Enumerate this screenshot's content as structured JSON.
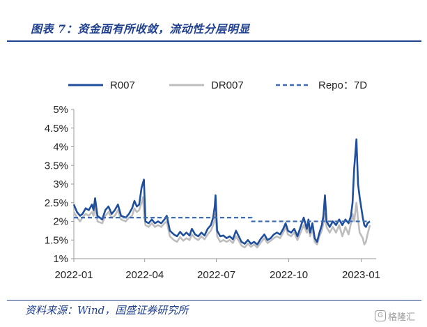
{
  "header": {
    "title": "图表 7：资金面有所收敛，流动性分层明显"
  },
  "footer": {
    "source": "资料来源：Wind，国盛证券研究所"
  },
  "watermark": {
    "text": "格隆汇"
  },
  "colors": {
    "accent": "#1f3f8f",
    "r007": "#1f4e9c",
    "dr007": "#bdbdbd",
    "repo": "#3c6db4"
  },
  "chart_data": {
    "type": "line",
    "title": "",
    "xlabel": "",
    "ylabel": "",
    "ylim": [
      1,
      5
    ],
    "yticks": [
      1,
      1.5,
      2,
      2.5,
      3,
      3.5,
      4,
      4.5,
      5
    ],
    "ytick_labels": [
      "1%",
      "1.5%",
      "2%",
      "2.5%",
      "3%",
      "3.5%",
      "4%",
      "4.5%",
      "5%"
    ],
    "xlim": [
      "2022-01-01",
      "2023-01-20"
    ],
    "xticks": [
      "2022-01-01",
      "2022-04-01",
      "2022-07-01",
      "2022-10-01",
      "2023-01-01"
    ],
    "xtick_labels": [
      "2022-01",
      "2022-04",
      "2022-07",
      "2022-10",
      "2023-01"
    ],
    "grid": false,
    "legend": "top",
    "series": [
      {
        "name": "R007",
        "style": "solid",
        "points": [
          [
            "2022-01-01",
            2.45
          ],
          [
            "2022-01-05",
            2.25
          ],
          [
            "2022-01-09",
            2.15
          ],
          [
            "2022-01-12",
            2.2
          ],
          [
            "2022-01-16",
            2.35
          ],
          [
            "2022-01-20",
            2.3
          ],
          [
            "2022-01-24",
            2.45
          ],
          [
            "2022-01-26",
            2.3
          ],
          [
            "2022-01-28",
            2.62
          ],
          [
            "2022-01-31",
            2.15
          ],
          [
            "2022-02-06",
            2.05
          ],
          [
            "2022-02-10",
            2.3
          ],
          [
            "2022-02-14",
            2.4
          ],
          [
            "2022-02-18",
            2.2
          ],
          [
            "2022-02-22",
            2.3
          ],
          [
            "2022-02-26",
            2.45
          ],
          [
            "2022-03-02",
            2.15
          ],
          [
            "2022-03-08",
            2.1
          ],
          [
            "2022-03-12",
            2.2
          ],
          [
            "2022-03-16",
            2.35
          ],
          [
            "2022-03-19",
            2.55
          ],
          [
            "2022-03-22",
            2.4
          ],
          [
            "2022-03-25",
            2.45
          ],
          [
            "2022-03-28",
            2.9
          ],
          [
            "2022-03-30",
            3.05
          ],
          [
            "2022-03-31",
            3.12
          ],
          [
            "2022-04-02",
            2.0
          ],
          [
            "2022-04-06",
            1.95
          ],
          [
            "2022-04-10",
            2.05
          ],
          [
            "2022-04-14",
            1.95
          ],
          [
            "2022-04-18",
            2.0
          ],
          [
            "2022-04-22",
            1.95
          ],
          [
            "2022-04-26",
            2.05
          ],
          [
            "2022-04-29",
            2.15
          ],
          [
            "2022-05-03",
            1.75
          ],
          [
            "2022-05-08",
            1.65
          ],
          [
            "2022-05-12",
            1.6
          ],
          [
            "2022-05-16",
            1.72
          ],
          [
            "2022-05-20",
            1.62
          ],
          [
            "2022-05-24",
            1.7
          ],
          [
            "2022-05-28",
            1.62
          ],
          [
            "2022-05-31",
            1.8
          ],
          [
            "2022-06-04",
            1.65
          ],
          [
            "2022-06-08",
            1.6
          ],
          [
            "2022-06-12",
            1.7
          ],
          [
            "2022-06-16",
            1.62
          ],
          [
            "2022-06-20",
            1.8
          ],
          [
            "2022-06-24",
            1.9
          ],
          [
            "2022-06-27",
            2.1
          ],
          [
            "2022-06-29",
            2.4
          ],
          [
            "2022-06-30",
            2.7
          ],
          [
            "2022-07-02",
            1.75
          ],
          [
            "2022-07-06",
            1.6
          ],
          [
            "2022-07-10",
            1.62
          ],
          [
            "2022-07-14",
            1.55
          ],
          [
            "2022-07-18",
            1.6
          ],
          [
            "2022-07-22",
            1.52
          ],
          [
            "2022-07-26",
            1.75
          ],
          [
            "2022-07-29",
            1.62
          ],
          [
            "2022-08-02",
            1.45
          ],
          [
            "2022-08-06",
            1.4
          ],
          [
            "2022-08-10",
            1.5
          ],
          [
            "2022-08-14",
            1.4
          ],
          [
            "2022-08-18",
            1.45
          ],
          [
            "2022-08-22",
            1.38
          ],
          [
            "2022-08-26",
            1.52
          ],
          [
            "2022-08-31",
            1.65
          ],
          [
            "2022-09-04",
            1.5
          ],
          [
            "2022-09-08",
            1.55
          ],
          [
            "2022-09-12",
            1.65
          ],
          [
            "2022-09-16",
            1.7
          ],
          [
            "2022-09-20",
            1.65
          ],
          [
            "2022-09-24",
            1.8
          ],
          [
            "2022-09-27",
            1.95
          ],
          [
            "2022-09-30",
            1.75
          ],
          [
            "2022-10-04",
            1.7
          ],
          [
            "2022-10-08",
            1.8
          ],
          [
            "2022-10-12",
            1.6
          ],
          [
            "2022-10-16",
            1.85
          ],
          [
            "2022-10-20",
            2.1
          ],
          [
            "2022-10-24",
            1.8
          ],
          [
            "2022-10-26",
            2.05
          ],
          [
            "2022-10-28",
            1.7
          ],
          [
            "2022-10-31",
            1.95
          ],
          [
            "2022-11-03",
            1.55
          ],
          [
            "2022-11-06",
            1.45
          ],
          [
            "2022-11-09",
            1.7
          ],
          [
            "2022-11-12",
            1.9
          ],
          [
            "2022-11-14",
            2.15
          ],
          [
            "2022-11-16",
            2.7
          ],
          [
            "2022-11-18",
            2.0
          ],
          [
            "2022-11-22",
            1.85
          ],
          [
            "2022-11-26",
            2.0
          ],
          [
            "2022-11-30",
            1.9
          ],
          [
            "2022-12-04",
            2.05
          ],
          [
            "2022-12-08",
            1.9
          ],
          [
            "2022-12-12",
            2.05
          ],
          [
            "2022-12-16",
            1.95
          ],
          [
            "2022-12-19",
            2.15
          ],
          [
            "2022-12-21",
            2.5
          ],
          [
            "2022-12-23",
            3.4
          ],
          [
            "2022-12-26",
            4.2
          ],
          [
            "2022-12-28",
            3.0
          ],
          [
            "2022-12-30",
            2.65
          ],
          [
            "2023-01-03",
            2.1
          ],
          [
            "2023-01-05",
            1.9
          ],
          [
            "2023-01-07",
            1.85
          ],
          [
            "2023-01-09",
            1.95
          ],
          [
            "2023-01-12",
            2.0
          ]
        ]
      },
      {
        "name": "DR007",
        "style": "solid",
        "points": [
          [
            "2022-01-01",
            2.25
          ],
          [
            "2022-01-05",
            2.1
          ],
          [
            "2022-01-09",
            2.0
          ],
          [
            "2022-01-12",
            2.1
          ],
          [
            "2022-01-16",
            2.2
          ],
          [
            "2022-01-20",
            2.15
          ],
          [
            "2022-01-24",
            2.25
          ],
          [
            "2022-01-26",
            2.15
          ],
          [
            "2022-01-28",
            2.4
          ],
          [
            "2022-01-31",
            2.0
          ],
          [
            "2022-02-06",
            1.95
          ],
          [
            "2022-02-10",
            2.15
          ],
          [
            "2022-02-14",
            2.25
          ],
          [
            "2022-02-18",
            2.1
          ],
          [
            "2022-02-22",
            2.15
          ],
          [
            "2022-02-26",
            2.3
          ],
          [
            "2022-03-02",
            2.05
          ],
          [
            "2022-03-08",
            2.0
          ],
          [
            "2022-03-12",
            2.1
          ],
          [
            "2022-03-16",
            2.15
          ],
          [
            "2022-03-19",
            2.35
          ],
          [
            "2022-03-22",
            2.25
          ],
          [
            "2022-03-25",
            2.3
          ],
          [
            "2022-03-28",
            2.5
          ],
          [
            "2022-03-30",
            2.65
          ],
          [
            "2022-03-31",
            2.2
          ],
          [
            "2022-04-02",
            1.9
          ],
          [
            "2022-04-06",
            1.85
          ],
          [
            "2022-04-10",
            1.95
          ],
          [
            "2022-04-14",
            1.85
          ],
          [
            "2022-04-18",
            1.9
          ],
          [
            "2022-04-22",
            1.85
          ],
          [
            "2022-04-26",
            1.95
          ],
          [
            "2022-04-29",
            2.0
          ],
          [
            "2022-05-03",
            1.6
          ],
          [
            "2022-05-08",
            1.5
          ],
          [
            "2022-05-12",
            1.45
          ],
          [
            "2022-05-16",
            1.58
          ],
          [
            "2022-05-20",
            1.48
          ],
          [
            "2022-05-24",
            1.55
          ],
          [
            "2022-05-28",
            1.5
          ],
          [
            "2022-05-31",
            1.65
          ],
          [
            "2022-06-04",
            1.55
          ],
          [
            "2022-06-08",
            1.5
          ],
          [
            "2022-06-12",
            1.6
          ],
          [
            "2022-06-16",
            1.52
          ],
          [
            "2022-06-20",
            1.65
          ],
          [
            "2022-06-24",
            1.75
          ],
          [
            "2022-06-27",
            1.9
          ],
          [
            "2022-06-29",
            2.05
          ],
          [
            "2022-06-30",
            2.2
          ],
          [
            "2022-07-02",
            1.6
          ],
          [
            "2022-07-06",
            1.45
          ],
          [
            "2022-07-10",
            1.5
          ],
          [
            "2022-07-14",
            1.45
          ],
          [
            "2022-07-18",
            1.5
          ],
          [
            "2022-07-22",
            1.42
          ],
          [
            "2022-07-26",
            1.6
          ],
          [
            "2022-07-29",
            1.5
          ],
          [
            "2022-08-02",
            1.35
          ],
          [
            "2022-08-06",
            1.3
          ],
          [
            "2022-08-10",
            1.4
          ],
          [
            "2022-08-14",
            1.32
          ],
          [
            "2022-08-18",
            1.38
          ],
          [
            "2022-08-22",
            1.3
          ],
          [
            "2022-08-26",
            1.42
          ],
          [
            "2022-08-31",
            1.55
          ],
          [
            "2022-09-04",
            1.42
          ],
          [
            "2022-09-08",
            1.48
          ],
          [
            "2022-09-12",
            1.55
          ],
          [
            "2022-09-16",
            1.6
          ],
          [
            "2022-09-20",
            1.55
          ],
          [
            "2022-09-24",
            1.7
          ],
          [
            "2022-09-27",
            1.85
          ],
          [
            "2022-09-30",
            1.65
          ],
          [
            "2022-10-04",
            1.6
          ],
          [
            "2022-10-08",
            1.7
          ],
          [
            "2022-10-12",
            1.5
          ],
          [
            "2022-10-16",
            1.7
          ],
          [
            "2022-10-20",
            1.9
          ],
          [
            "2022-10-24",
            1.7
          ],
          [
            "2022-10-26",
            1.9
          ],
          [
            "2022-10-28",
            1.6
          ],
          [
            "2022-10-31",
            1.8
          ],
          [
            "2022-11-03",
            1.45
          ],
          [
            "2022-11-06",
            1.38
          ],
          [
            "2022-11-09",
            1.6
          ],
          [
            "2022-11-12",
            1.75
          ],
          [
            "2022-11-14",
            1.95
          ],
          [
            "2022-11-16",
            2.2
          ],
          [
            "2022-11-18",
            1.85
          ],
          [
            "2022-11-22",
            1.7
          ],
          [
            "2022-11-26",
            1.85
          ],
          [
            "2022-11-30",
            1.7
          ],
          [
            "2022-12-04",
            1.9
          ],
          [
            "2022-12-08",
            1.6
          ],
          [
            "2022-12-12",
            1.85
          ],
          [
            "2022-12-16",
            1.65
          ],
          [
            "2022-12-19",
            1.95
          ],
          [
            "2022-12-21",
            2.2
          ],
          [
            "2022-12-23",
            2.0
          ],
          [
            "2022-12-26",
            2.5
          ],
          [
            "2022-12-28",
            2.05
          ],
          [
            "2022-12-30",
            1.7
          ],
          [
            "2023-01-03",
            1.55
          ],
          [
            "2023-01-05",
            1.38
          ],
          [
            "2023-01-07",
            1.45
          ],
          [
            "2023-01-09",
            1.65
          ],
          [
            "2023-01-12",
            1.9
          ]
        ]
      },
      {
        "name": "Repo：7D",
        "style": "dashed",
        "points": [
          [
            "2022-01-01",
            2.1
          ],
          [
            "2022-08-15",
            2.1
          ],
          [
            "2022-08-15",
            2.0
          ],
          [
            "2023-01-12",
            2.0
          ]
        ]
      }
    ]
  }
}
